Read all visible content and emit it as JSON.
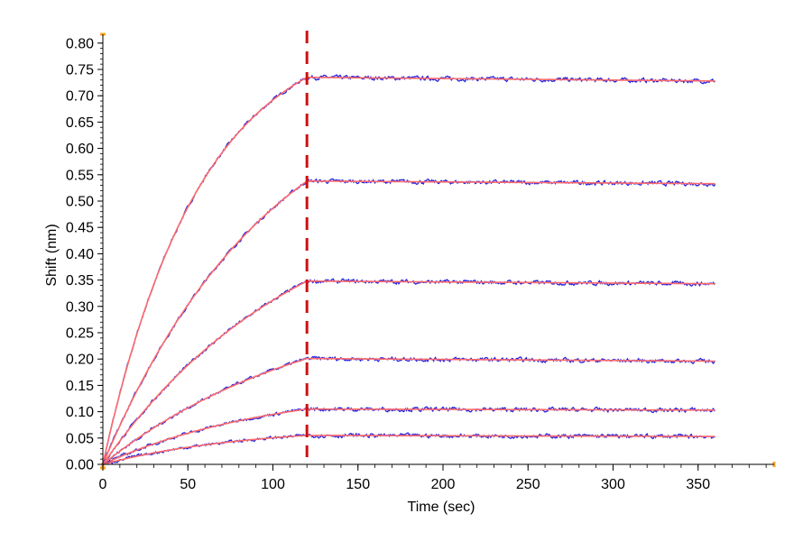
{
  "chart_data": {
    "type": "line",
    "title": "",
    "xlabel": "Time (sec)",
    "ylabel": "Shift (nm)",
    "xlim": [
      0,
      390
    ],
    "ylim": [
      0,
      0.8
    ],
    "x_ticks": [
      0,
      50,
      100,
      150,
      200,
      250,
      300,
      350
    ],
    "y_ticks": [
      0.0,
      0.05,
      0.1,
      0.15,
      0.2,
      0.25,
      0.3,
      0.35,
      0.4,
      0.45,
      0.5,
      0.55,
      0.6,
      0.65,
      0.7,
      0.75,
      0.8
    ],
    "dissociation_start": 120,
    "x_end": 360,
    "grid": false,
    "legend": "none",
    "raw_color": "#2222dd",
    "fit_color": "#ff6a6a",
    "marker_color": "#cc1111",
    "axis_accent_color": "#f5a623",
    "series": [
      {
        "plateau": 0.735,
        "end": 0.728,
        "k": 0.0175
      },
      {
        "plateau": 0.538,
        "end": 0.533,
        "k": 0.01
      },
      {
        "plateau": 0.348,
        "end": 0.343,
        "k": 0.0085
      },
      {
        "plateau": 0.201,
        "end": 0.196,
        "k": 0.008
      },
      {
        "plateau": 0.105,
        "end": 0.103,
        "k": 0.01
      },
      {
        "plateau": 0.055,
        "end": 0.053,
        "k": 0.012
      }
    ]
  }
}
